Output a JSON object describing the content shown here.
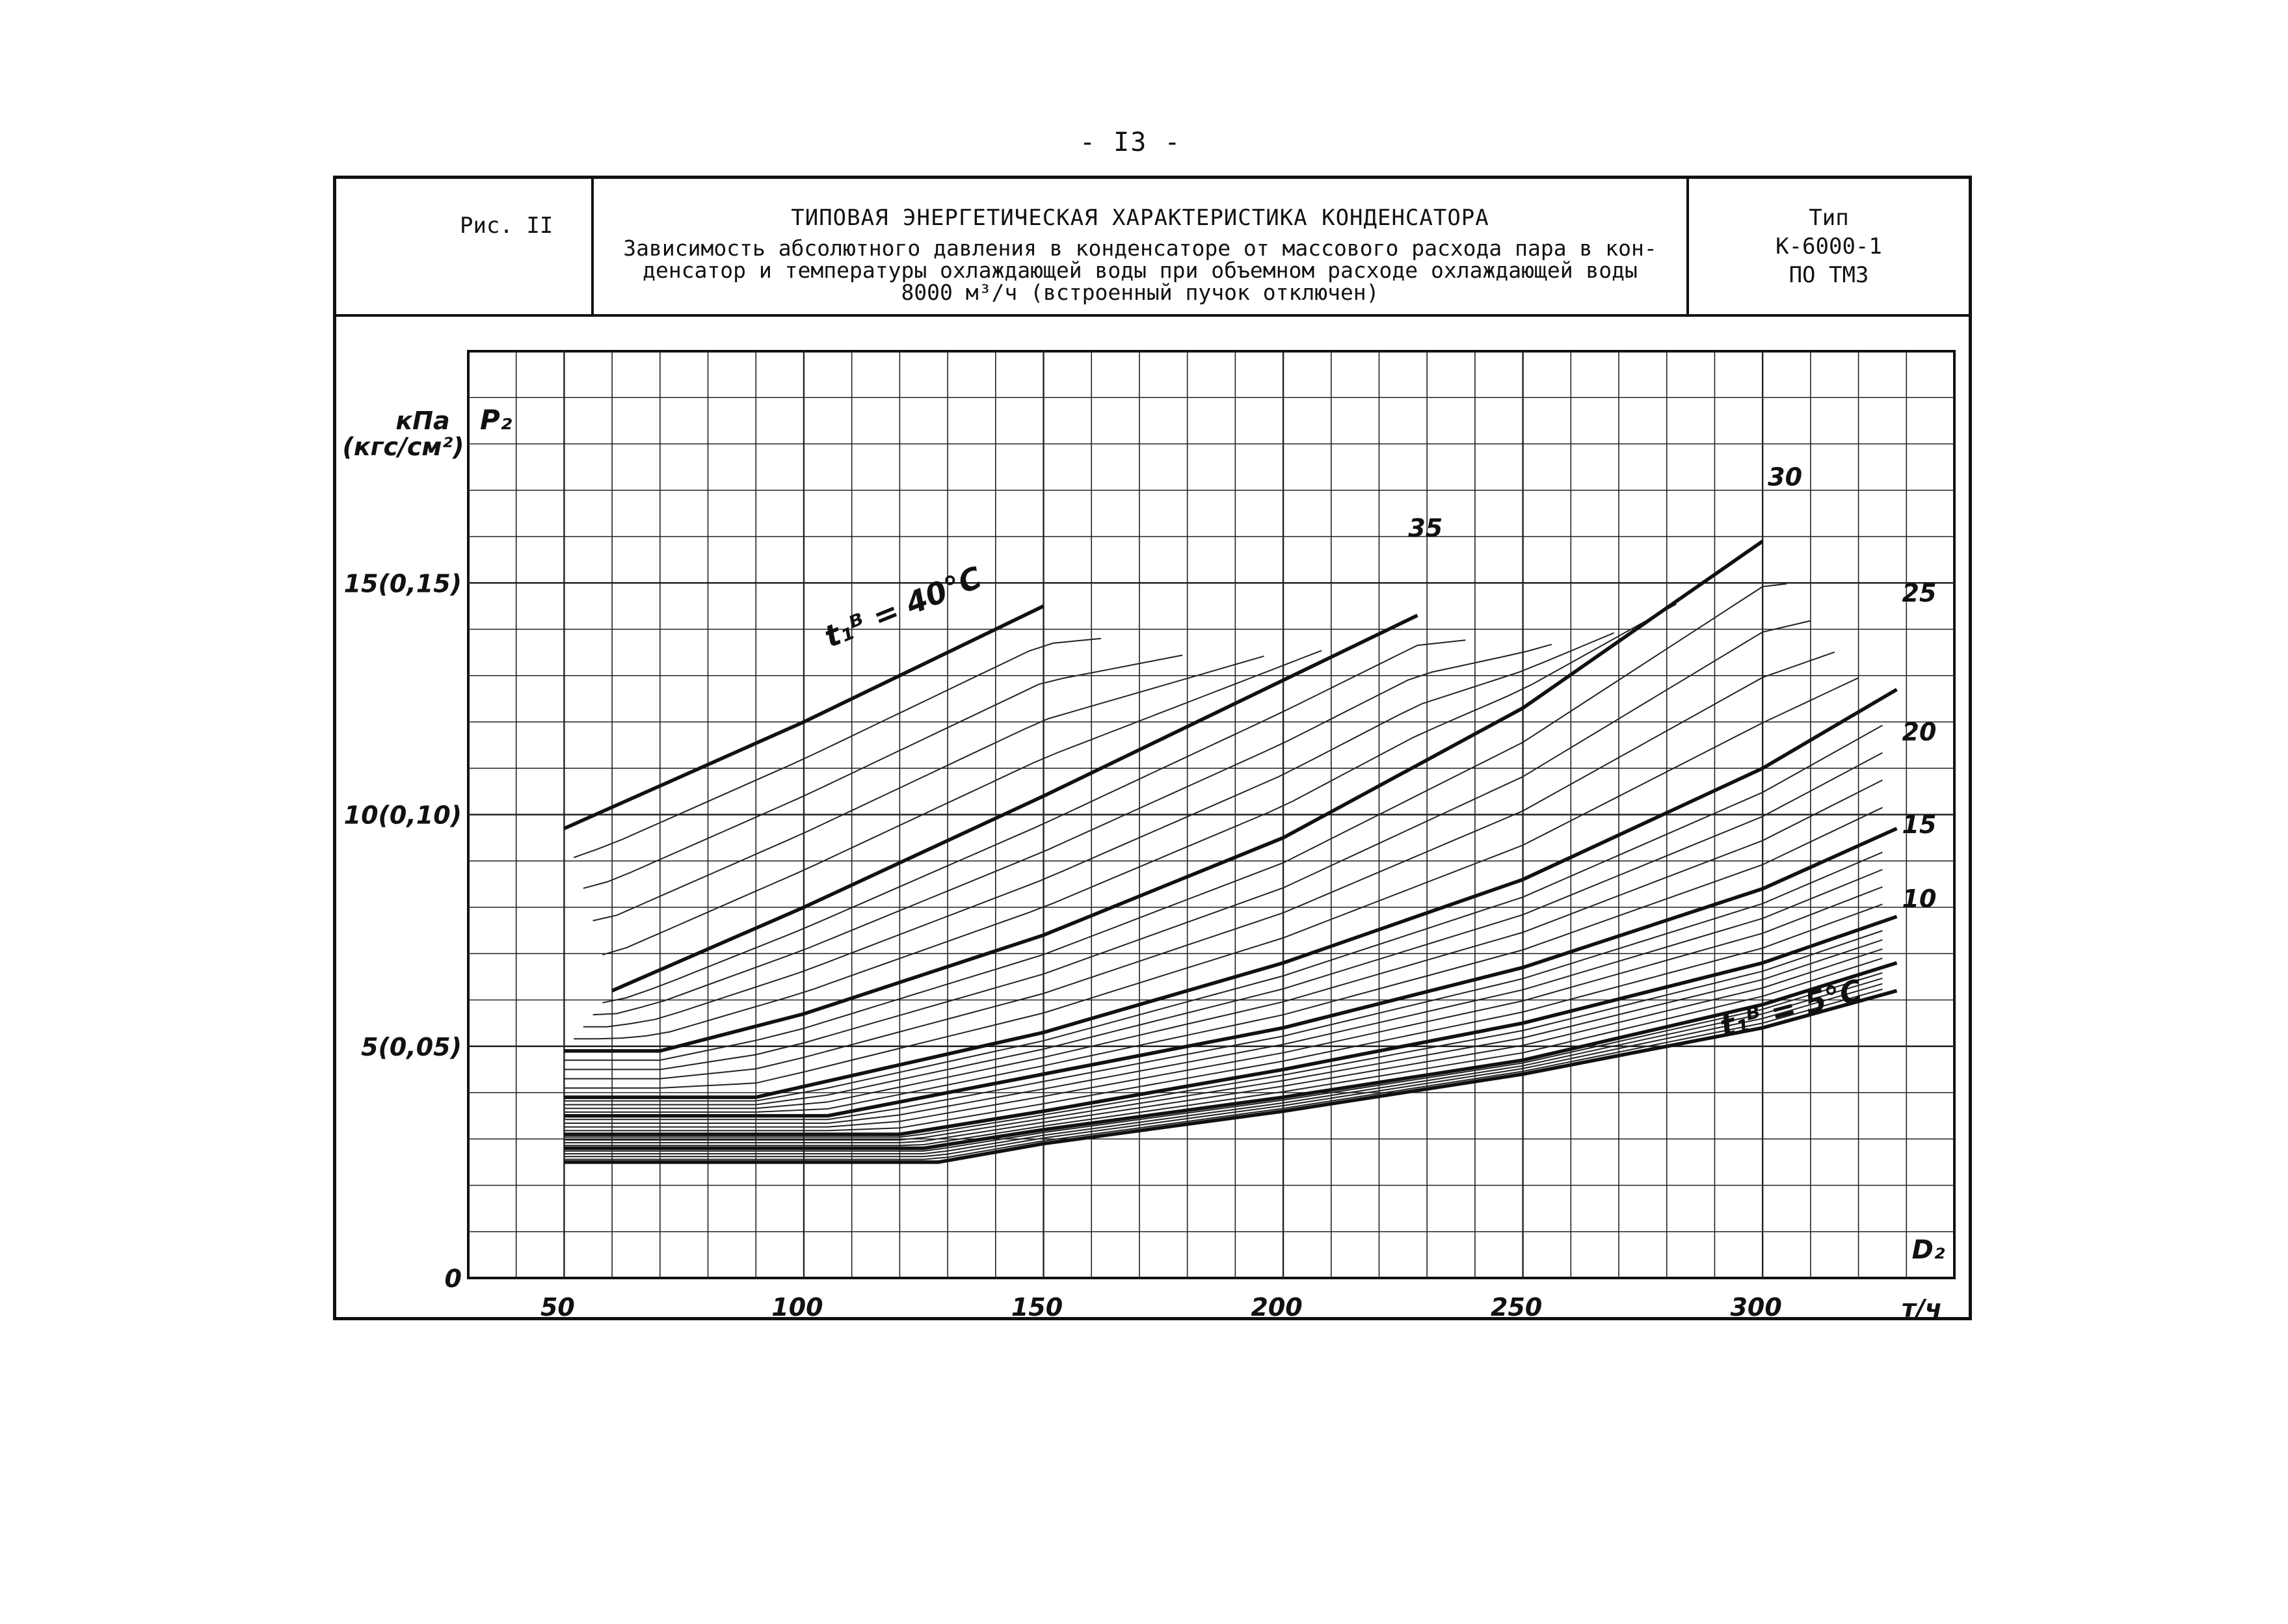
{
  "page": {
    "number": "- I3 -"
  },
  "header": {
    "figure_label": "Рис. II",
    "title": "ТИПОВАЯ ЭНЕРГЕТИЧЕСКАЯ ХАРАКТЕРИСТИКА КОНДЕНСАТОРА",
    "subtitle_line1": "Зависимость абсолютного давления в конденсаторе от массового расхода пара в кон-",
    "subtitle_line2": "денсатор и температуры охлаждающей воды при объемном расходе охлаждающей воды",
    "subtitle_line3": "8000 м³/ч (встроенный пучок отключен)",
    "type_label": "Тип",
    "type_value": "К-6000-1",
    "type_maker": "ПО ТМЗ"
  },
  "chart_data": {
    "type": "line",
    "title": "",
    "xlabel": "D₂",
    "x_unit": "т/ч",
    "ylabel": "P₂",
    "y_unit_line1": "кПа",
    "y_unit_line2": "(кгс/см²)",
    "xlim": [
      30,
      340
    ],
    "ylim": [
      0,
      20
    ],
    "x_ticks": [
      50,
      100,
      150,
      200,
      250,
      300
    ],
    "x_tick_labels": [
      "50",
      "100",
      "150",
      "200",
      "250",
      "300"
    ],
    "y_ticks": [
      0,
      5,
      10,
      15
    ],
    "y_tick_labels": [
      "0",
      "5(0,05)",
      "10(0,10)",
      "15(0,15)"
    ],
    "grid": true,
    "series_param": "t₁ᴮ, °C",
    "series": [
      {
        "name": "t₁ᴮ = 40°C",
        "t": 40,
        "points": [
          [
            50,
            9.7
          ],
          [
            100,
            12.0
          ],
          [
            150,
            14.5
          ]
        ]
      },
      {
        "name": "35",
        "t": 35,
        "points": [
          [
            60,
            6.2
          ],
          [
            100,
            8.0
          ],
          [
            150,
            10.4
          ],
          [
            200,
            12.9
          ],
          [
            228,
            14.3
          ]
        ]
      },
      {
        "name": "30",
        "t": 30,
        "points": [
          [
            50,
            4.9
          ],
          [
            70,
            4.9
          ],
          [
            100,
            5.7
          ],
          [
            150,
            7.4
          ],
          [
            200,
            9.5
          ],
          [
            250,
            12.3
          ],
          [
            300,
            15.9
          ]
        ]
      },
      {
        "name": "25",
        "t": 25,
        "points": [
          [
            50,
            3.9
          ],
          [
            90,
            3.9
          ],
          [
            150,
            5.3
          ],
          [
            200,
            6.8
          ],
          [
            250,
            8.6
          ],
          [
            300,
            11.0
          ],
          [
            328,
            12.7
          ]
        ]
      },
      {
        "name": "20",
        "t": 20,
        "points": [
          [
            50,
            3.5
          ],
          [
            105,
            3.5
          ],
          [
            150,
            4.4
          ],
          [
            200,
            5.4
          ],
          [
            250,
            6.7
          ],
          [
            300,
            8.4
          ],
          [
            328,
            9.7
          ]
        ]
      },
      {
        "name": "15",
        "t": 15,
        "points": [
          [
            50,
            3.1
          ],
          [
            120,
            3.1
          ],
          [
            150,
            3.6
          ],
          [
            200,
            4.5
          ],
          [
            250,
            5.5
          ],
          [
            300,
            6.8
          ],
          [
            328,
            7.8
          ]
        ]
      },
      {
        "name": "10",
        "t": 10,
        "points": [
          [
            50,
            2.8
          ],
          [
            125,
            2.8
          ],
          [
            150,
            3.2
          ],
          [
            200,
            3.9
          ],
          [
            250,
            4.7
          ],
          [
            300,
            5.9
          ],
          [
            328,
            6.8
          ]
        ]
      },
      {
        "name": "t₁ᴮ = 5°C",
        "t": 5,
        "points": [
          [
            50,
            2.5
          ],
          [
            128,
            2.5
          ],
          [
            150,
            2.9
          ],
          [
            200,
            3.6
          ],
          [
            250,
            4.4
          ],
          [
            300,
            5.4
          ],
          [
            328,
            6.2
          ]
        ]
      }
    ],
    "series_labels": {
      "top": "t₁ᴮ = 40°C",
      "bottom": "t₁ᴮ = 5°C",
      "mid": [
        "35",
        "30",
        "25",
        "20",
        "15",
        "10"
      ]
    }
  }
}
